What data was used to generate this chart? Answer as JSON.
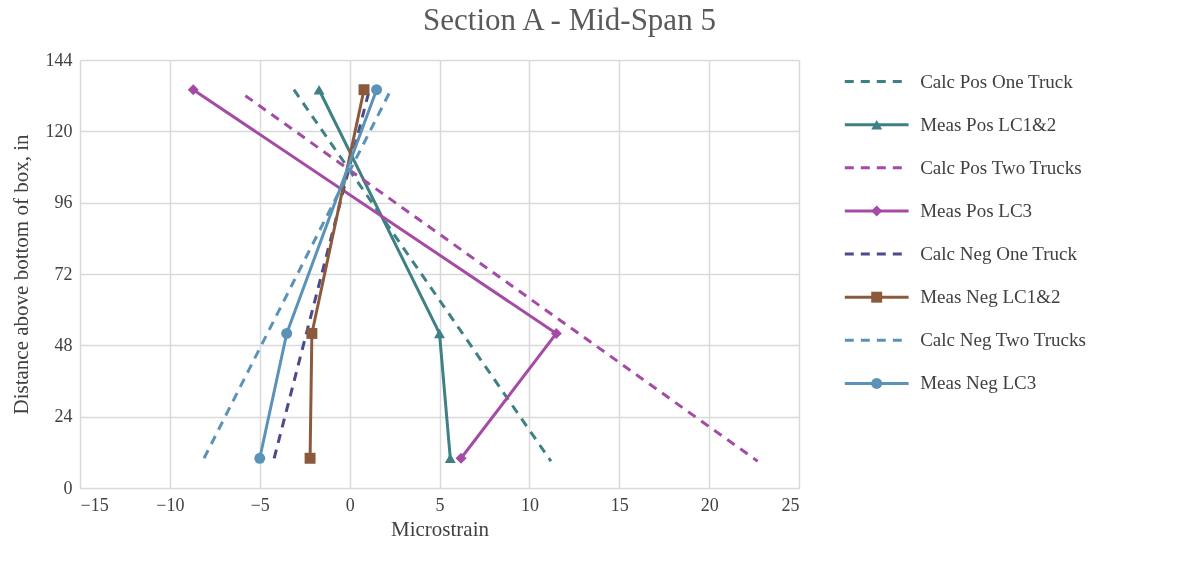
{
  "chart_data": {
    "type": "line",
    "title": "Section A - Mid-Span 5",
    "xlabel": "Microstrain",
    "ylabel": "Distance above bottom of box, in",
    "xlim": [
      -15,
      25
    ],
    "xticks": [
      -15,
      -10,
      -5,
      0,
      5,
      10,
      15,
      20,
      25
    ],
    "ylim": [
      0,
      144
    ],
    "yticks": [
      0,
      24,
      48,
      72,
      96,
      120,
      144
    ],
    "grid": true,
    "legend": "right",
    "series": [
      {
        "name": "Calc Pos One Truck",
        "color": "#3f8085",
        "line_style": "dashed",
        "marker": "none",
        "x": [
          -3.1,
          11.2
        ],
        "values": [
          134,
          9
        ]
      },
      {
        "name": "Meas Pos LC1&2",
        "color": "#3f8085",
        "line_style": "solid",
        "marker": "triangle",
        "x": [
          -1.7,
          5,
          5.6
        ],
        "values": [
          134,
          52,
          10
        ]
      },
      {
        "name": "Calc Pos Two Trucks",
        "color": "#a44ba6",
        "line_style": "dashed",
        "marker": "none",
        "x": [
          -5.8,
          22.7
        ],
        "values": [
          132,
          9
        ]
      },
      {
        "name": "Meas Pos LC3",
        "color": "#a44ba6",
        "line_style": "solid",
        "marker": "diamond",
        "x": [
          -8.7,
          11.5,
          6.2
        ],
        "values": [
          134,
          52,
          10
        ]
      },
      {
        "name": "Calc Neg One Truck",
        "color": "#4b4a8a",
        "line_style": "dashed",
        "marker": "none",
        "x": [
          -4.2,
          1.1
        ],
        "values": [
          10,
          134
        ]
      },
      {
        "name": "Meas Neg LC1&2",
        "color": "#8b5a3c",
        "line_style": "solid",
        "marker": "square",
        "x": [
          -2.2,
          -2.1,
          0.8
        ],
        "values": [
          10,
          52,
          134
        ]
      },
      {
        "name": "Calc Neg Two Trucks",
        "color": "#5b93b8",
        "line_style": "dashed",
        "marker": "none",
        "x": [
          -8.1,
          2.3
        ],
        "values": [
          10,
          134
        ]
      },
      {
        "name": "Meas Neg LC3",
        "color": "#5b93b8",
        "line_style": "solid",
        "marker": "circle",
        "x": [
          -5,
          -3.5,
          1.5
        ],
        "values": [
          10,
          52,
          134
        ]
      }
    ]
  }
}
